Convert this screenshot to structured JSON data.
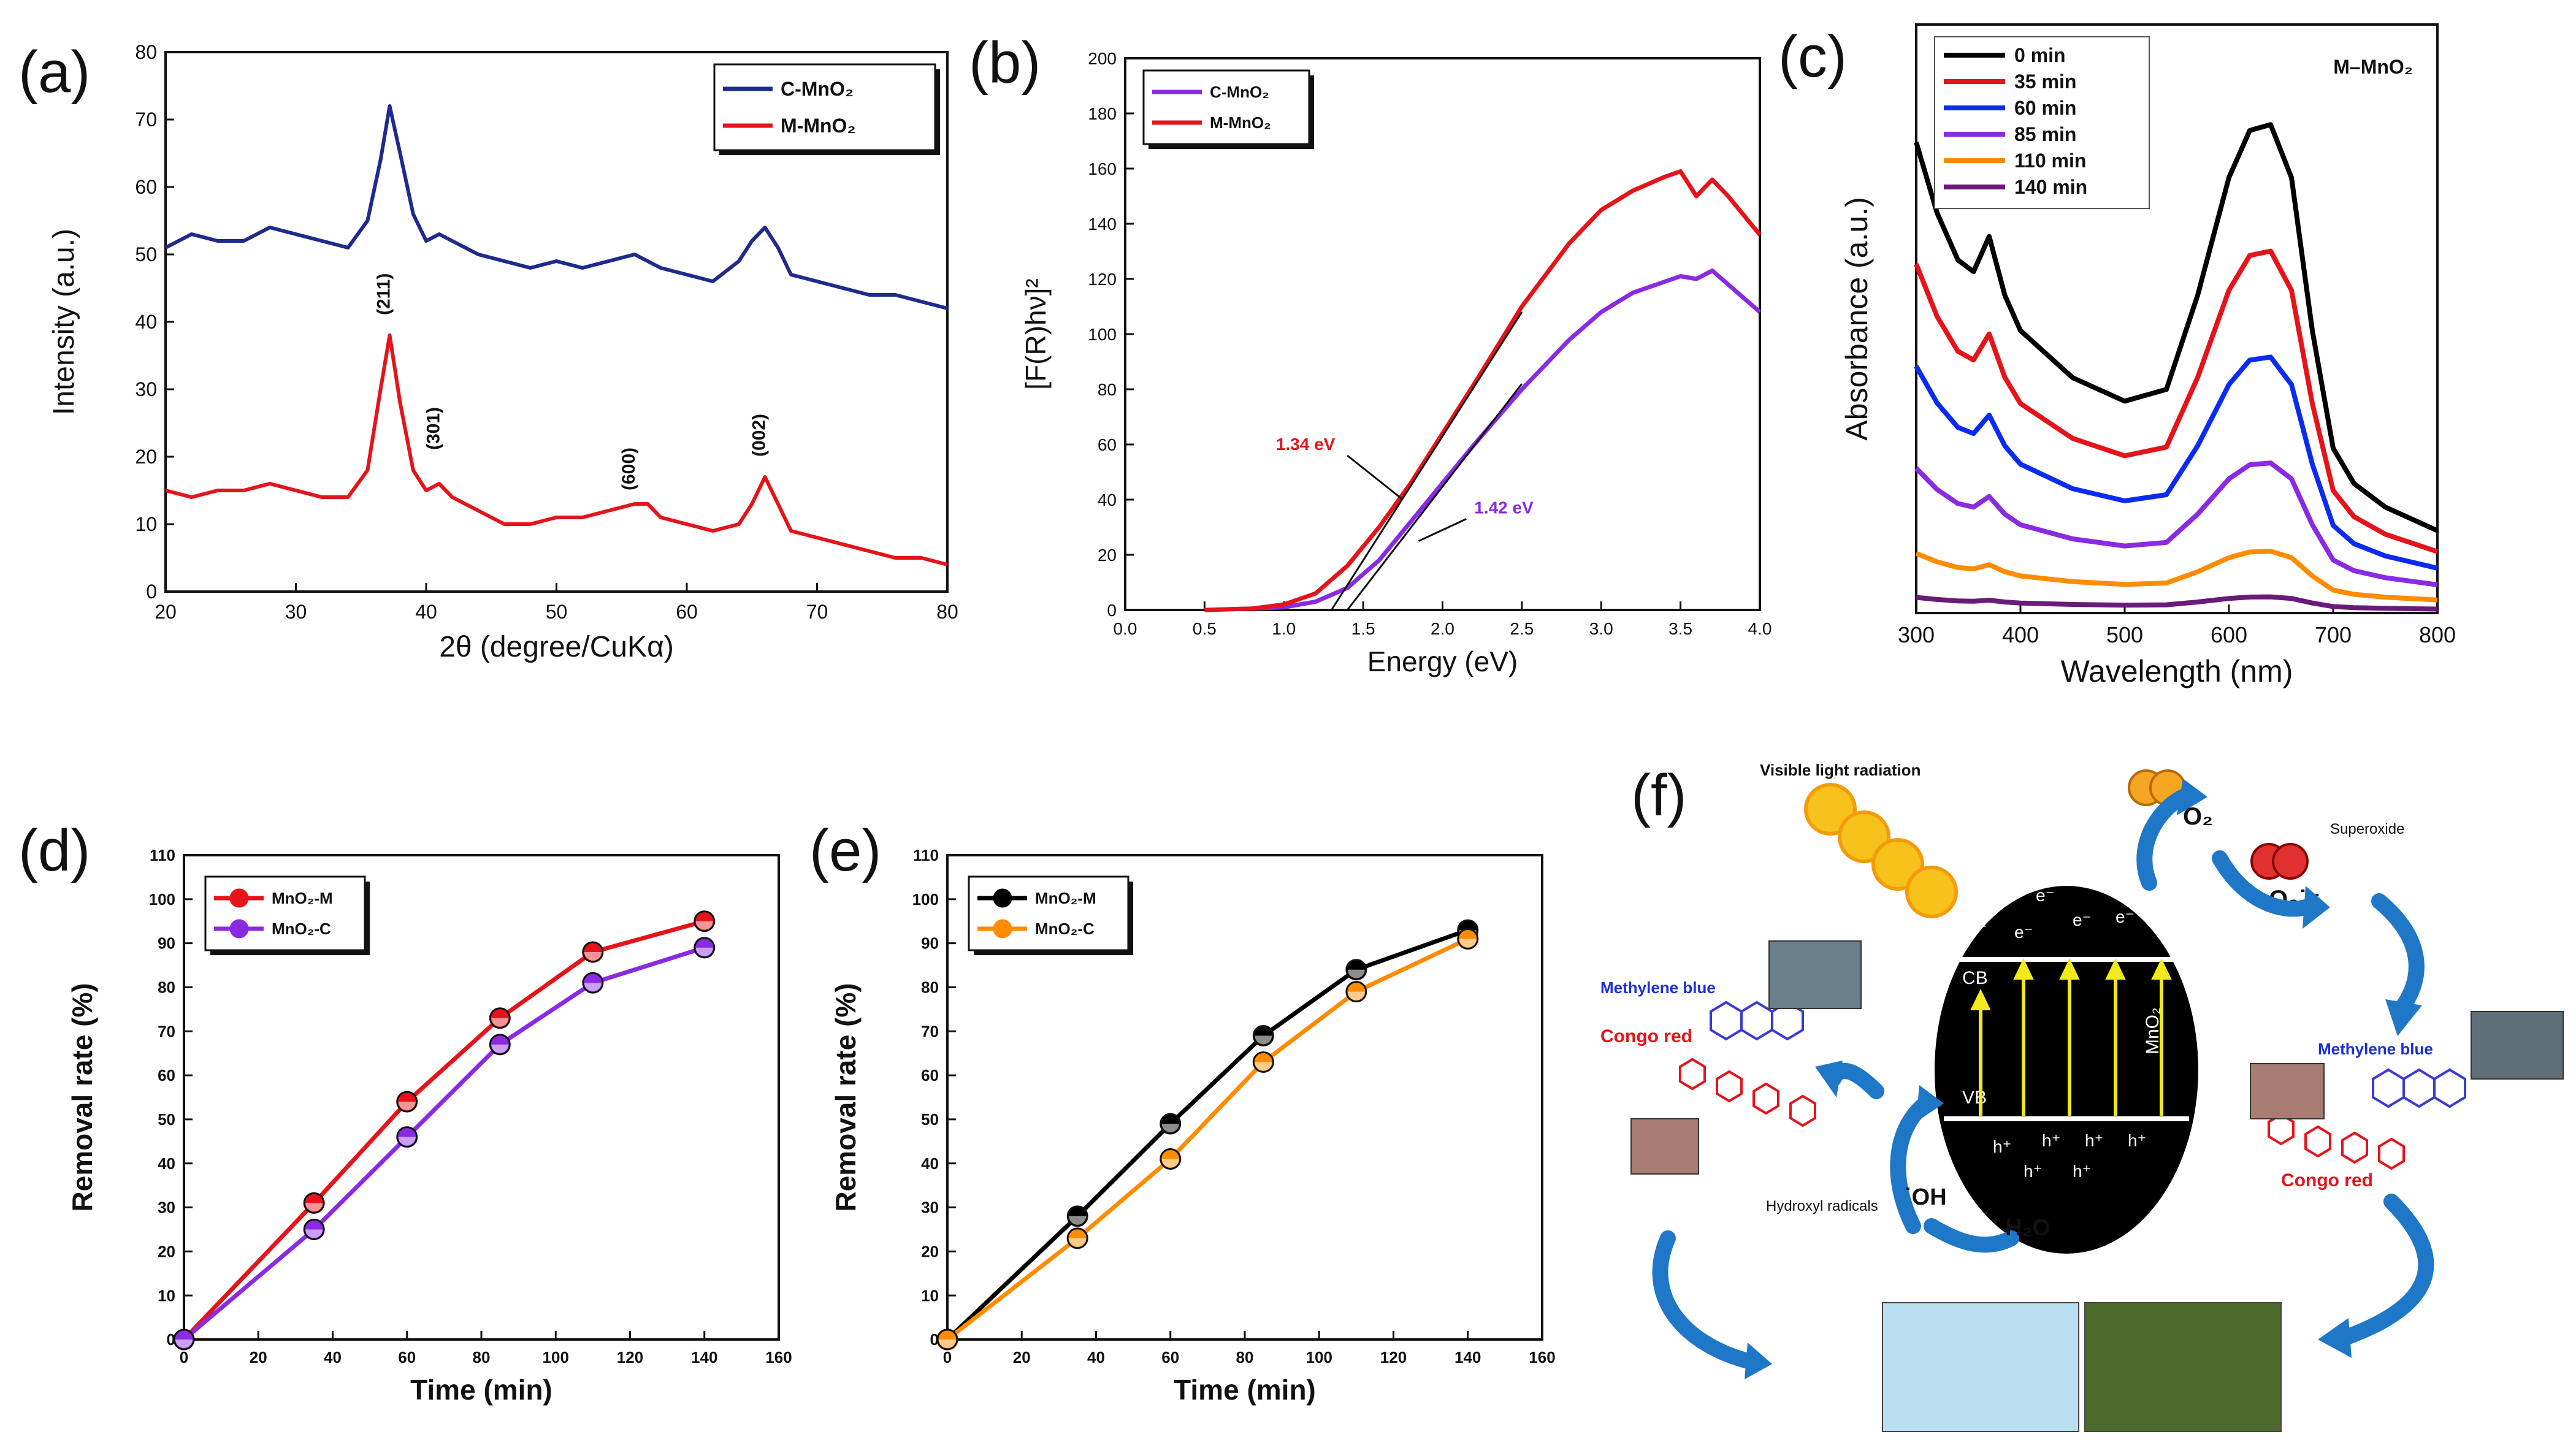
{
  "panels": {
    "a": {
      "label": "(a)"
    },
    "b": {
      "label": "(b)"
    },
    "c": {
      "label": "(c)"
    },
    "d": {
      "label": "(d)"
    },
    "e": {
      "label": "(e)"
    },
    "f": {
      "label": "(f)"
    }
  },
  "colors": {
    "navy": "#1f2b8c",
    "red": "#e5141b",
    "purple": "#8a2be2",
    "black": "#000000",
    "blue": "#0b2cf0",
    "orange": "#ff8c00",
    "dark_purple": "#6a1a7a",
    "arrow_blue": "#1f77c8"
  },
  "chart_data": [
    {
      "id": "a",
      "type": "line",
      "xlabel": "2θ (degree/CuKα)",
      "ylabel": "Intensity (a.u.)",
      "xlim": [
        20,
        80
      ],
      "ylim": [
        0,
        80
      ],
      "xticks": [
        20,
        30,
        40,
        50,
        60,
        70,
        80
      ],
      "yticks": [
        0,
        10,
        20,
        30,
        40,
        50,
        60,
        70,
        80
      ],
      "legend": "top-right",
      "series": [
        {
          "name": "C-MnO₂",
          "color": "#1f2b8c",
          "x": [
            20,
            22,
            24,
            26,
            28,
            30,
            32,
            34,
            35.5,
            36.5,
            37.2,
            38,
            39,
            40,
            41,
            42,
            44,
            46,
            48,
            50,
            52,
            54,
            56,
            58,
            60,
            62,
            64,
            65,
            66,
            67,
            68,
            70,
            72,
            74,
            76,
            78,
            80
          ],
          "y": [
            51,
            53,
            52,
            52,
            54,
            53,
            52,
            51,
            55,
            64,
            72,
            65,
            56,
            52,
            53,
            52,
            50,
            49,
            48,
            49,
            48,
            49,
            50,
            48,
            47,
            46,
            49,
            52,
            54,
            51,
            47,
            46,
            45,
            44,
            44,
            43,
            42
          ]
        },
        {
          "name": "M-MnO₂",
          "color": "#e5141b",
          "x": [
            20,
            22,
            24,
            26,
            28,
            30,
            32,
            34,
            35.5,
            36.5,
            37.2,
            38,
            39,
            40,
            41,
            42,
            44,
            46,
            48,
            50,
            52,
            54,
            56,
            57,
            58,
            60,
            62,
            64,
            65,
            66,
            67,
            68,
            70,
            72,
            74,
            76,
            78,
            80
          ],
          "y": [
            15,
            14,
            15,
            15,
            16,
            15,
            14,
            14,
            18,
            30,
            38,
            28,
            18,
            15,
            16,
            14,
            12,
            10,
            10,
            11,
            11,
            12,
            13,
            13,
            11,
            10,
            9,
            10,
            13,
            17,
            13,
            9,
            8,
            7,
            6,
            5,
            5,
            4
          ]
        }
      ],
      "annotations": [
        "(211)",
        "(301)",
        "(600)",
        "(002)"
      ]
    },
    {
      "id": "b",
      "type": "line",
      "xlabel": "Energy (eV)",
      "ylabel": "[F(R)hν]²",
      "xlim": [
        0,
        4
      ],
      "ylim": [
        0,
        200
      ],
      "xticks": [
        0.0,
        0.5,
        1.0,
        1.5,
        2.0,
        2.5,
        3.0,
        3.5,
        4.0
      ],
      "yticks": [
        0,
        20,
        40,
        60,
        80,
        100,
        120,
        140,
        160,
        180,
        200
      ],
      "legend": "top-left",
      "series": [
        {
          "name": "C-MnO₂",
          "color": "#8a2be2",
          "x": [
            0.5,
            0.8,
            1.0,
            1.2,
            1.4,
            1.6,
            1.8,
            2.0,
            2.2,
            2.5,
            2.8,
            3.0,
            3.2,
            3.4,
            3.5,
            3.6,
            3.7,
            3.8,
            4.0
          ],
          "y": [
            0,
            0.5,
            1,
            3,
            8,
            18,
            32,
            46,
            60,
            80,
            98,
            108,
            115,
            119,
            121,
            120,
            123,
            118,
            108
          ]
        },
        {
          "name": "M-MnO₂",
          "color": "#e5141b",
          "x": [
            0.5,
            0.8,
            1.0,
            1.2,
            1.4,
            1.6,
            1.8,
            2.0,
            2.2,
            2.5,
            2.8,
            3.0,
            3.2,
            3.4,
            3.5,
            3.6,
            3.7,
            3.8,
            4.0
          ],
          "y": [
            0,
            0.5,
            2,
            6,
            16,
            30,
            46,
            64,
            82,
            110,
            133,
            145,
            152,
            157,
            159,
            150,
            156,
            150,
            136
          ]
        }
      ],
      "tangents": [
        {
          "x": [
            1.3,
            2.5
          ],
          "y": [
            0,
            108
          ]
        },
        {
          "x": [
            1.4,
            2.5
          ],
          "y": [
            0,
            82
          ]
        }
      ],
      "annotations": [
        {
          "text": "1.34 eV",
          "color": "#e5141b"
        },
        {
          "text": "1.42 eV",
          "color": "#8a2be2"
        }
      ]
    },
    {
      "id": "c",
      "type": "line",
      "title": "M–MnO₂",
      "xlabel": "Wavelength (nm)",
      "ylabel": "Absorbance (a.u.)",
      "xlim": [
        300,
        800
      ],
      "ylim": [
        0,
        1
      ],
      "xticks": [
        300,
        400,
        500,
        600,
        700,
        800
      ],
      "legend": "top-left",
      "series": [
        {
          "name": "0 min",
          "color": "#000000",
          "scale": 1.0
        },
        {
          "name": "35 min",
          "color": "#e5141b",
          "scale": 0.74
        },
        {
          "name": "60 min",
          "color": "#0b2cf0",
          "scale": 0.52
        },
        {
          "name": "85 min",
          "color": "#8a2be2",
          "scale": 0.3
        },
        {
          "name": "110 min",
          "color": "#ff8c00",
          "scale": 0.12
        },
        {
          "name": "140 min",
          "color": "#6a1a7a",
          "scale": 0.03
        }
      ],
      "shape_x": [
        300,
        320,
        340,
        355,
        370,
        385,
        400,
        450,
        500,
        540,
        570,
        600,
        620,
        640,
        660,
        680,
        700,
        720,
        750,
        800
      ],
      "shape_y": [
        0.72,
        0.6,
        0.52,
        0.5,
        0.56,
        0.46,
        0.4,
        0.32,
        0.28,
        0.3,
        0.46,
        0.66,
        0.74,
        0.75,
        0.66,
        0.4,
        0.2,
        0.14,
        0.1,
        0.06
      ]
    },
    {
      "id": "d",
      "type": "line",
      "xlabel": "Time (min)",
      "ylabel": "Removal rate (%)",
      "xlim": [
        0,
        160
      ],
      "ylim": [
        0,
        110
      ],
      "xticks": [
        0,
        20,
        40,
        60,
        80,
        100,
        120,
        140,
        160
      ],
      "yticks": [
        0,
        10,
        20,
        30,
        40,
        50,
        60,
        70,
        80,
        90,
        100,
        110
      ],
      "legend": "top-left",
      "series": [
        {
          "name": "MnO₂-M",
          "color": "#e5141b",
          "x": [
            0,
            35,
            60,
            85,
            110,
            140
          ],
          "y": [
            0,
            31,
            54,
            73,
            88,
            95
          ]
        },
        {
          "name": "MnO₂-C",
          "color": "#8a2be2",
          "x": [
            0,
            35,
            60,
            85,
            110,
            140
          ],
          "y": [
            0,
            25,
            46,
            67,
            81,
            89
          ]
        }
      ]
    },
    {
      "id": "e",
      "type": "line",
      "xlabel": "Time (min)",
      "ylabel": "Removal rate (%)",
      "xlim": [
        0,
        160
      ],
      "ylim": [
        0,
        110
      ],
      "xticks": [
        0,
        20,
        40,
        60,
        80,
        100,
        120,
        140,
        160
      ],
      "yticks": [
        0,
        10,
        20,
        30,
        40,
        50,
        60,
        70,
        80,
        90,
        100,
        110
      ],
      "legend": "top-left",
      "series": [
        {
          "name": "MnO₂-M",
          "color": "#000000",
          "x": [
            0,
            35,
            60,
            85,
            110,
            140
          ],
          "y": [
            0,
            28,
            49,
            69,
            84,
            93
          ]
        },
        {
          "name": "MnO₂-C",
          "color": "#ff8c00",
          "x": [
            0,
            35,
            60,
            85,
            110,
            140
          ],
          "y": [
            0,
            23,
            41,
            63,
            79,
            91
          ]
        }
      ]
    }
  ],
  "schematic": {
    "visible_light": "Visible light radiation",
    "o2": "O₂",
    "superoxide": "Superoxide",
    "superoxide_symbol": "O₂˙⁻",
    "electron": "e⁻",
    "hole": "h⁺",
    "cb": "CB",
    "vb": "VB",
    "mno2": "MnO₂",
    "methylene_blue_left": "Methylene blue",
    "congo_red_left": "Congo red",
    "methylene_blue_right": "Methylene blue",
    "congo_red_right": "Congo red",
    "hydroxyl": "Hydroxyl radicals",
    "oh": "˙OH",
    "h2o": "H₂O"
  }
}
